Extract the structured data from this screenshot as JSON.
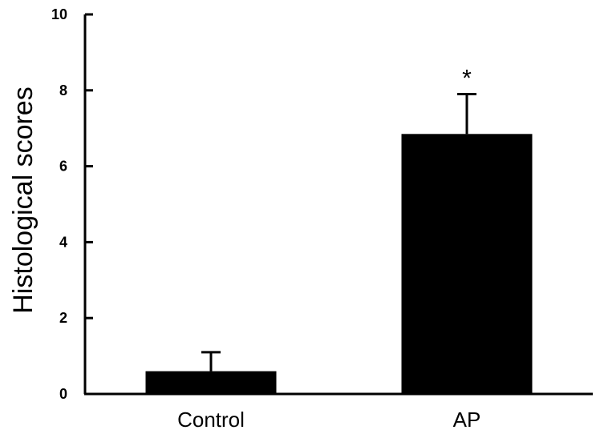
{
  "chart_data": {
    "type": "bar",
    "title": "",
    "xlabel": "",
    "ylabel": "Histological scores",
    "ylim": [
      0,
      10
    ],
    "yticks": [
      0,
      2,
      4,
      6,
      8,
      10
    ],
    "categories": [
      "Control",
      "AP"
    ],
    "values": [
      0.6,
      6.85
    ],
    "error": [
      0.5,
      1.05
    ],
    "annotations": [
      "",
      "*"
    ],
    "bar_color": "#000000",
    "grid": false,
    "legend": "none"
  }
}
